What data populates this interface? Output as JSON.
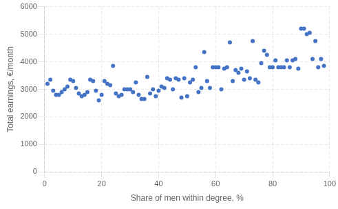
{
  "chart_data": {
    "type": "scatter",
    "xlabel": "Share of men within degree, %",
    "ylabel": "Total earnings, €/month",
    "x": [
      1,
      2,
      3,
      4,
      5,
      6,
      7,
      8,
      9,
      10,
      11,
      12,
      13,
      14,
      15,
      16,
      17,
      18,
      19,
      20,
      21,
      22,
      23,
      24,
      25,
      26,
      27,
      28,
      29,
      30,
      31,
      32,
      33,
      34,
      35,
      36,
      37,
      38,
      39,
      40,
      41,
      42,
      43,
      44,
      45,
      46,
      47,
      48,
      49,
      50,
      51,
      52,
      53,
      54,
      55,
      56,
      57,
      58,
      59,
      60,
      61,
      62,
      63,
      64,
      65,
      66,
      67,
      68,
      69,
      70,
      71,
      72,
      73,
      74,
      75,
      76,
      77,
      78,
      79,
      80,
      81,
      82,
      83,
      84,
      85,
      86,
      87,
      88,
      89,
      90,
      91,
      92,
      93,
      94,
      95,
      96,
      97,
      98
    ],
    "values": [
      3200,
      3350,
      2950,
      2800,
      2800,
      2900,
      3000,
      3100,
      3350,
      3300,
      3050,
      2850,
      2750,
      2800,
      2900,
      3350,
      3300,
      2950,
      2600,
      2800,
      3300,
      3200,
      3150,
      3850,
      2850,
      2750,
      2800,
      3000,
      3000,
      3000,
      2900,
      3250,
      2800,
      2650,
      2650,
      3450,
      2850,
      3000,
      2750,
      2950,
      3100,
      3050,
      3400,
      3350,
      3000,
      3400,
      3350,
      2700,
      3400,
      2750,
      3250,
      3350,
      3800,
      2900,
      3050,
      4350,
      3300,
      3050,
      3800,
      3800,
      3800,
      3000,
      3750,
      3800,
      4700,
      3300,
      3700,
      3600,
      3750,
      3350,
      3650,
      3400,
      4750,
      3350,
      3250,
      3950,
      4400,
      4250,
      3800,
      3800,
      4050,
      3800,
      3800,
      3800,
      4050,
      3800,
      4050,
      4100,
      3750,
      5200,
      5200,
      5000,
      5050,
      4100,
      4750,
      3800,
      4100,
      3850
    ],
    "color": "#4472C4",
    "xlim": [
      0,
      100
    ],
    "ylim": [
      0,
      6000
    ],
    "xticks": [
      0,
      20,
      40,
      60,
      80,
      100
    ],
    "yticks": [
      0,
      1000,
      2000,
      3000,
      4000,
      5000,
      6000
    ],
    "grid": true
  }
}
